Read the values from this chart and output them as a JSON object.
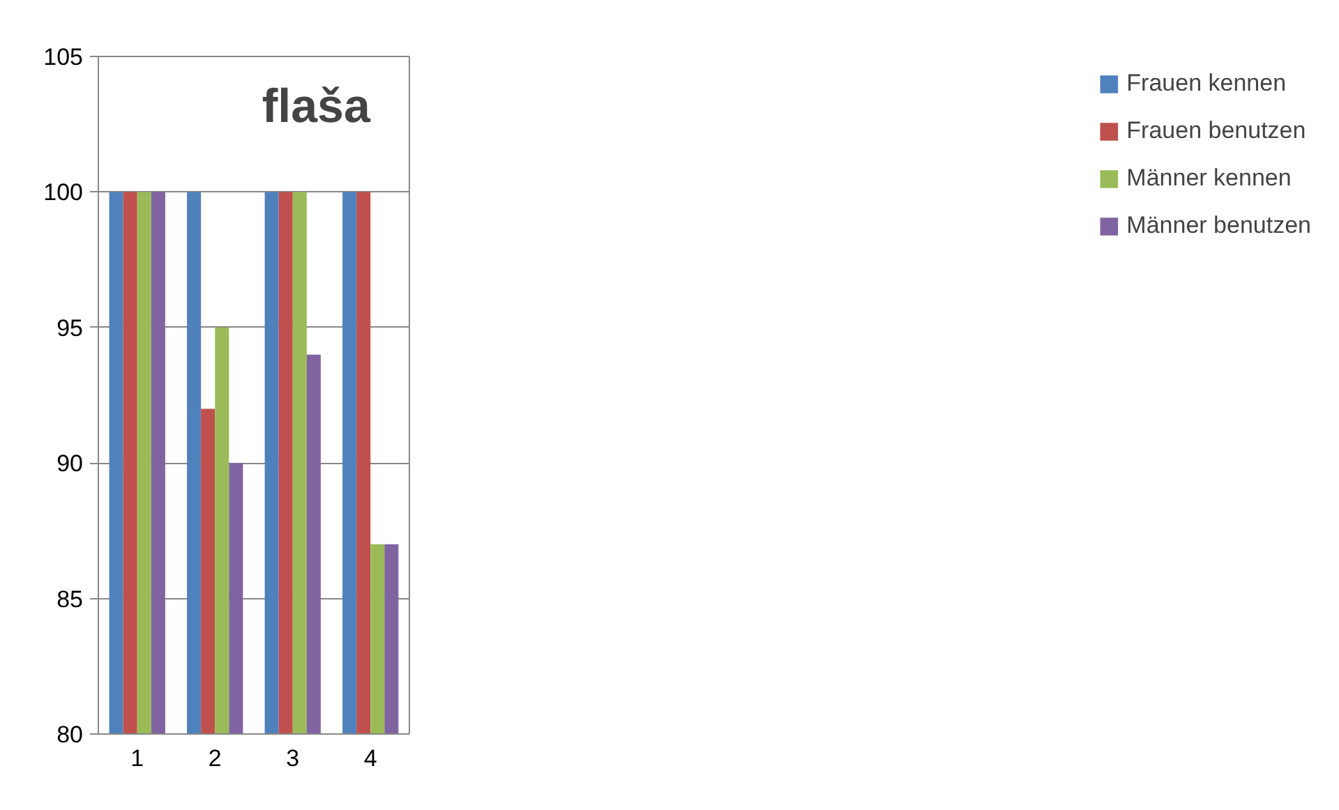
{
  "chart_data": {
    "type": "bar",
    "title": "flaša",
    "categories": [
      "1",
      "2",
      "3",
      "4"
    ],
    "series": [
      {
        "name": "Frauen kennen",
        "color": "#4f81bd",
        "values": [
          100,
          100,
          100,
          100
        ]
      },
      {
        "name": "Frauen benutzen",
        "color": "#c0504d",
        "values": [
          100,
          92,
          100,
          100
        ]
      },
      {
        "name": "Männer kennen",
        "color": "#9bbb59",
        "values": [
          100,
          95,
          100,
          87
        ]
      },
      {
        "name": "Männer benutzen",
        "color": "#8064a2",
        "values": [
          100,
          90,
          94,
          87
        ]
      }
    ],
    "ylim": [
      80,
      105
    ],
    "yticks": [
      80,
      85,
      90,
      95,
      100,
      105
    ],
    "grid": "y",
    "legend": "right"
  }
}
